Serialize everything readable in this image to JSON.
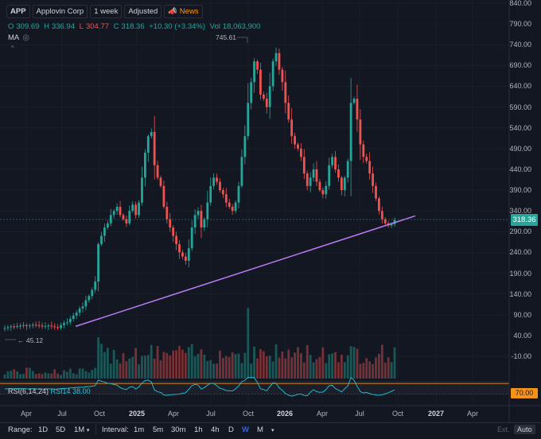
{
  "header": {
    "ticker": "APP",
    "company": "Applovin Corp",
    "interval": "1 week",
    "adjusted": "Adjusted",
    "news": "News"
  },
  "ohlc": {
    "o_label": "O",
    "o": "309.69",
    "h_label": "H",
    "h": "336.94",
    "l_label": "L",
    "l": "304.77",
    "c_label": "C",
    "c": "318.36",
    "change": "+10.30 (+3.34%)",
    "vol_label": "Vol",
    "vol": "18,063,900"
  },
  "indicator_ma": "MA",
  "price_axis": [
    "840.00",
    "790.00",
    "740.00",
    "690.00",
    "640.00",
    "590.00",
    "540.00",
    "490.00",
    "440.00",
    "390.00",
    "340.00",
    "290.00",
    "240.00",
    "190.00",
    "140.00",
    "90.00",
    "40.00",
    "-10.00"
  ],
  "current_price": "318.36",
  "low_marker": "45.12",
  "high_marker": "745.61",
  "rsi": {
    "name": "RSI(6,14,24)",
    "series": "RSI14",
    "value": "38.00",
    "badge": "70.00"
  },
  "time_axis": [
    {
      "label": "Apr",
      "bold": false
    },
    {
      "label": "Jul",
      "bold": false
    },
    {
      "label": "Oct",
      "bold": false
    },
    {
      "label": "2025",
      "bold": true
    },
    {
      "label": "Apr",
      "bold": false
    },
    {
      "label": "Jul",
      "bold": false
    },
    {
      "label": "Oct",
      "bold": false
    },
    {
      "label": "2026",
      "bold": true
    },
    {
      "label": "Apr",
      "bold": false
    },
    {
      "label": "Jul",
      "bold": false
    },
    {
      "label": "Oct",
      "bold": false
    },
    {
      "label": "2027",
      "bold": true
    },
    {
      "label": "Apr",
      "bold": false
    }
  ],
  "bottom_bar": {
    "range_label": "Range:",
    "ranges": [
      "1D",
      "5D",
      "1M"
    ],
    "interval_label": "Interval:",
    "intervals": [
      "1m",
      "5m",
      "30m",
      "1h",
      "4h",
      "D",
      "W",
      "M"
    ],
    "active_interval": "W",
    "ext": "Ext.",
    "auto": "Auto"
  },
  "colors": {
    "up": "#26a69a",
    "down": "#ef5350",
    "trendline": "#b97cf3",
    "rsi_line": "#26c6da",
    "rsi_band": "#f7931a",
    "background": "#131722"
  },
  "chart_data": {
    "type": "candlestick",
    "xlabel": "",
    "ylabel": "",
    "ylim": [
      -10,
      840
    ],
    "series": [
      {
        "name": "APP",
        "summary_ohlc_last": {
          "open": 309.69,
          "high": 336.94,
          "low": 304.77,
          "close": 318.36
        }
      },
      {
        "name": "trendline",
        "from": {
          "date": "2024-07",
          "value": 62
        },
        "to": {
          "date": "2026-10",
          "value": 328
        }
      }
    ],
    "weekly_close_approx": [
      58,
      60,
      62,
      61,
      63,
      64,
      65,
      63,
      64,
      66,
      65,
      64,
      62,
      63,
      64,
      62,
      60,
      58,
      65,
      70,
      72,
      80,
      88,
      95,
      105,
      110,
      125,
      135,
      150,
      170,
      260,
      280,
      300,
      310,
      330,
      340,
      350,
      330,
      320,
      310,
      340,
      355,
      330,
      360,
      420,
      480,
      520,
      530,
      450,
      420,
      400,
      350,
      320,
      300,
      280,
      260,
      240,
      230,
      220,
      250,
      300,
      330,
      340,
      300,
      320,
      360,
      400,
      420,
      410,
      390,
      380,
      360,
      350,
      340,
      360,
      400,
      470,
      520,
      600,
      650,
      700,
      680,
      620,
      610,
      590,
      640,
      700,
      720,
      680,
      650,
      600,
      560,
      520,
      500,
      490,
      470,
      430,
      400,
      420,
      440,
      410,
      390,
      380,
      400,
      450,
      470,
      440,
      420,
      390,
      420,
      460,
      600,
      610,
      560,
      500,
      470,
      460,
      430,
      400,
      370,
      340,
      320,
      310,
      305,
      308,
      318
    ]
  }
}
